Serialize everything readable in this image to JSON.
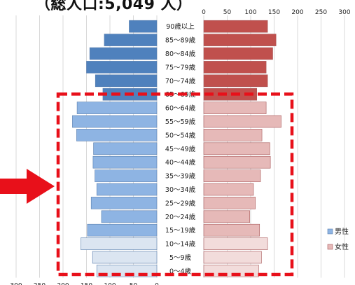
{
  "title": "（総人口:5,049 人）",
  "chart_data": {
    "type": "bar",
    "subtype": "population-pyramid",
    "categories": [
      "0～4歳",
      "5～9歳",
      "10～14歳",
      "15～19歳",
      "20～24歳",
      "25～29歳",
      "30～34歳",
      "35～39歳",
      "40～44歳",
      "45～49歳",
      "50～54歳",
      "55～59歳",
      "60～64歳",
      "65～69歳",
      "70～74歳",
      "75～79歳",
      "80～84歳",
      "85～89歳",
      "90歳以上"
    ],
    "series": [
      {
        "name": "男性",
        "values": [
          128,
          137,
          162,
          148,
          118,
          140,
          128,
          132,
          136,
          135,
          171,
          180,
          170,
          115,
          131,
          150,
          143,
          112,
          59
        ]
      },
      {
        "name": "女性",
        "values": [
          117,
          123,
          136,
          119,
          98,
          110,
          106,
          121,
          142,
          141,
          124,
          165,
          133,
          113,
          136,
          133,
          147,
          154,
          136
        ]
      }
    ],
    "xlim": [
      0,
      300
    ],
    "ticks": [
      "300",
      "250",
      "200",
      "150",
      "100",
      "50",
      "0"
    ],
    "grid": true,
    "legend_position": "bottom-right",
    "colors": {
      "male_dark": "#4f81bd",
      "male_mid": "#8eb4e3",
      "male_light": "#dbe5f1",
      "female_dark": "#c0504d",
      "female_mid": "#e6b9b8",
      "female_light": "#f2dcdb",
      "highlight": "#e8101a"
    },
    "annotation": {
      "highlight_box": {
        "from_category": "0～4歳",
        "to_category": "60～64歳",
        "style": "dashed-red"
      },
      "arrow": {
        "direction": "right",
        "color": "#e8101a"
      }
    }
  }
}
